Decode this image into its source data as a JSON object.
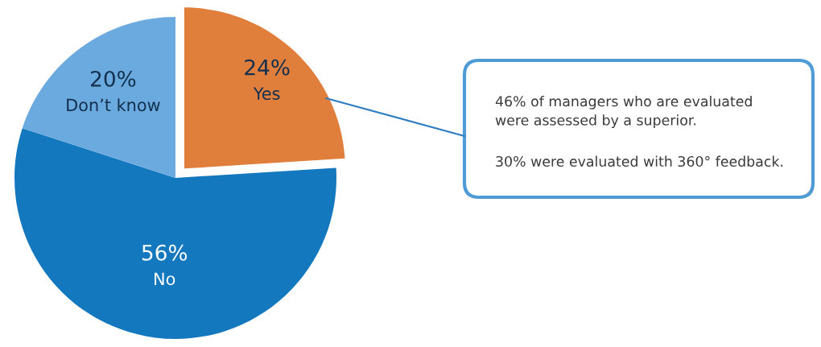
{
  "chart_data": {
    "type": "pie",
    "categories": [
      "Yes",
      "No",
      "Don’t know"
    ],
    "values": [
      24,
      56,
      20
    ],
    "colors": [
      "#e07f3c",
      "#1478be",
      "#6aaade"
    ],
    "value_labels": [
      "24%",
      "56%",
      "20%"
    ],
    "annotations": [
      "46% of managers who are evaluated\nwere assessed by a superior.",
      "30% were evaluated with 360° feedback."
    ]
  }
}
